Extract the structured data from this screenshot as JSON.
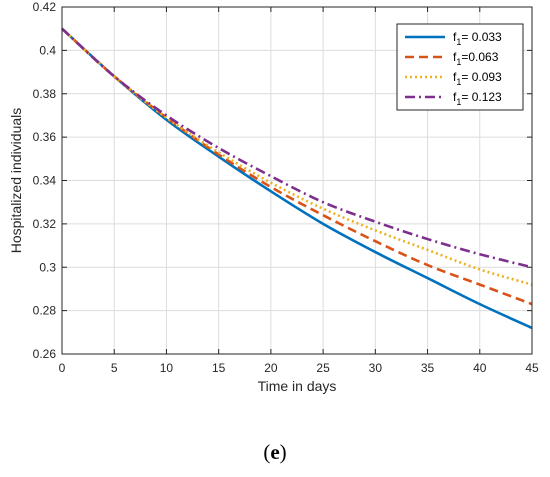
{
  "chart_data": {
    "type": "line",
    "title": "",
    "xlabel": "Time in days",
    "ylabel": "Hospitalized individuals",
    "xlim": [
      0,
      45
    ],
    "ylim": [
      0.26,
      0.42
    ],
    "xticks": [
      0,
      5,
      10,
      15,
      20,
      25,
      30,
      35,
      40,
      45
    ],
    "yticks": [
      0.26,
      0.28,
      0.3,
      0.32,
      0.34,
      0.36,
      0.38,
      0.4,
      0.42
    ],
    "ytick_labels": [
      "0.26",
      "0.28",
      "0.3",
      "0.32",
      "0.34",
      "0.36",
      "0.38",
      "0.4",
      "0.42"
    ],
    "grid": true,
    "legend_position": "top-right",
    "x": [
      0,
      5,
      10,
      15,
      20,
      25,
      30,
      35,
      40,
      45
    ],
    "series": [
      {
        "name": "f",
        "sub": "1",
        "value_text": "= 0.033",
        "color": "#0072BD",
        "dash": "solid",
        "values": [
          0.41,
          0.388,
          0.368,
          0.351,
          0.335,
          0.32,
          0.307,
          0.295,
          0.283,
          0.272
        ]
      },
      {
        "name": "f",
        "sub": "1",
        "value_text": "=0.063",
        "color": "#D95319",
        "dash": "dashed",
        "values": [
          0.41,
          0.388,
          0.369,
          0.352,
          0.337,
          0.324,
          0.312,
          0.301,
          0.292,
          0.283
        ]
      },
      {
        "name": "f",
        "sub": "1",
        "value_text": "= 0.093",
        "color": "#EDB120",
        "dash": "dotted",
        "values": [
          0.41,
          0.388,
          0.369,
          0.353,
          0.339,
          0.327,
          0.317,
          0.308,
          0.299,
          0.292
        ]
      },
      {
        "name": "f",
        "sub": "1",
        "value_text": "= 0.123",
        "color": "#7E2F8E",
        "dash": "dashdot",
        "values": [
          0.41,
          0.388,
          0.37,
          0.355,
          0.342,
          0.33,
          0.321,
          0.313,
          0.306,
          0.3
        ]
      }
    ]
  },
  "caption": {
    "open": "(",
    "letter": "e",
    "close": ")"
  }
}
